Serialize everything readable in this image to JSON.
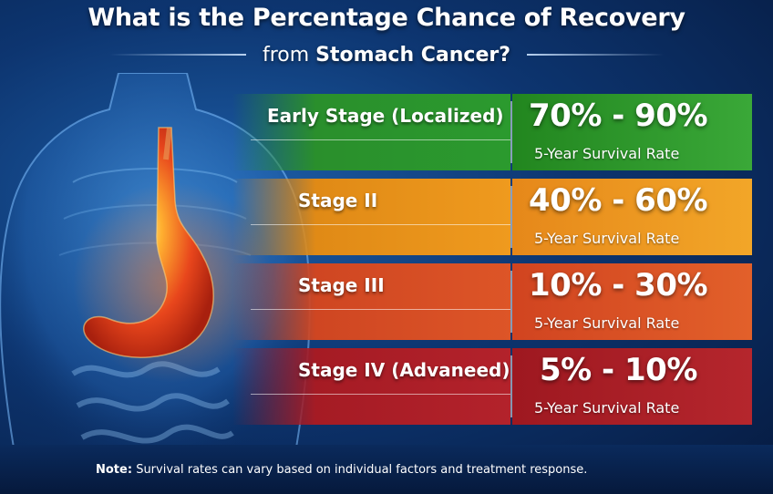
{
  "title": {
    "line1": "What is the Percentage Chance of Recovery",
    "line2_prefix": "from",
    "line2_emphasis": "Stomach Cancer?"
  },
  "rows": [
    {
      "stage": "Early Stage (Localized)",
      "range": "70% - 90%",
      "rate_label": "5-Year Survival Rate",
      "color": "#2b9a2e"
    },
    {
      "stage": "Stage II",
      "range": "40% - 60%",
      "rate_label": "5-Year Survival Rate",
      "color": "#ef9a1e"
    },
    {
      "stage": "Stage III",
      "range": "10% - 30%",
      "rate_label": "5-Year Survival Rate",
      "color": "#dd5527"
    },
    {
      "stage": "Stage IV (Advaneed)",
      "range": "5% - 10%",
      "rate_label": "5-Year Survival Rate",
      "color": "#b3222b"
    }
  ],
  "note": {
    "label": "Note:",
    "text": "Survival rates can vary based on individual factors and treatment response."
  }
}
